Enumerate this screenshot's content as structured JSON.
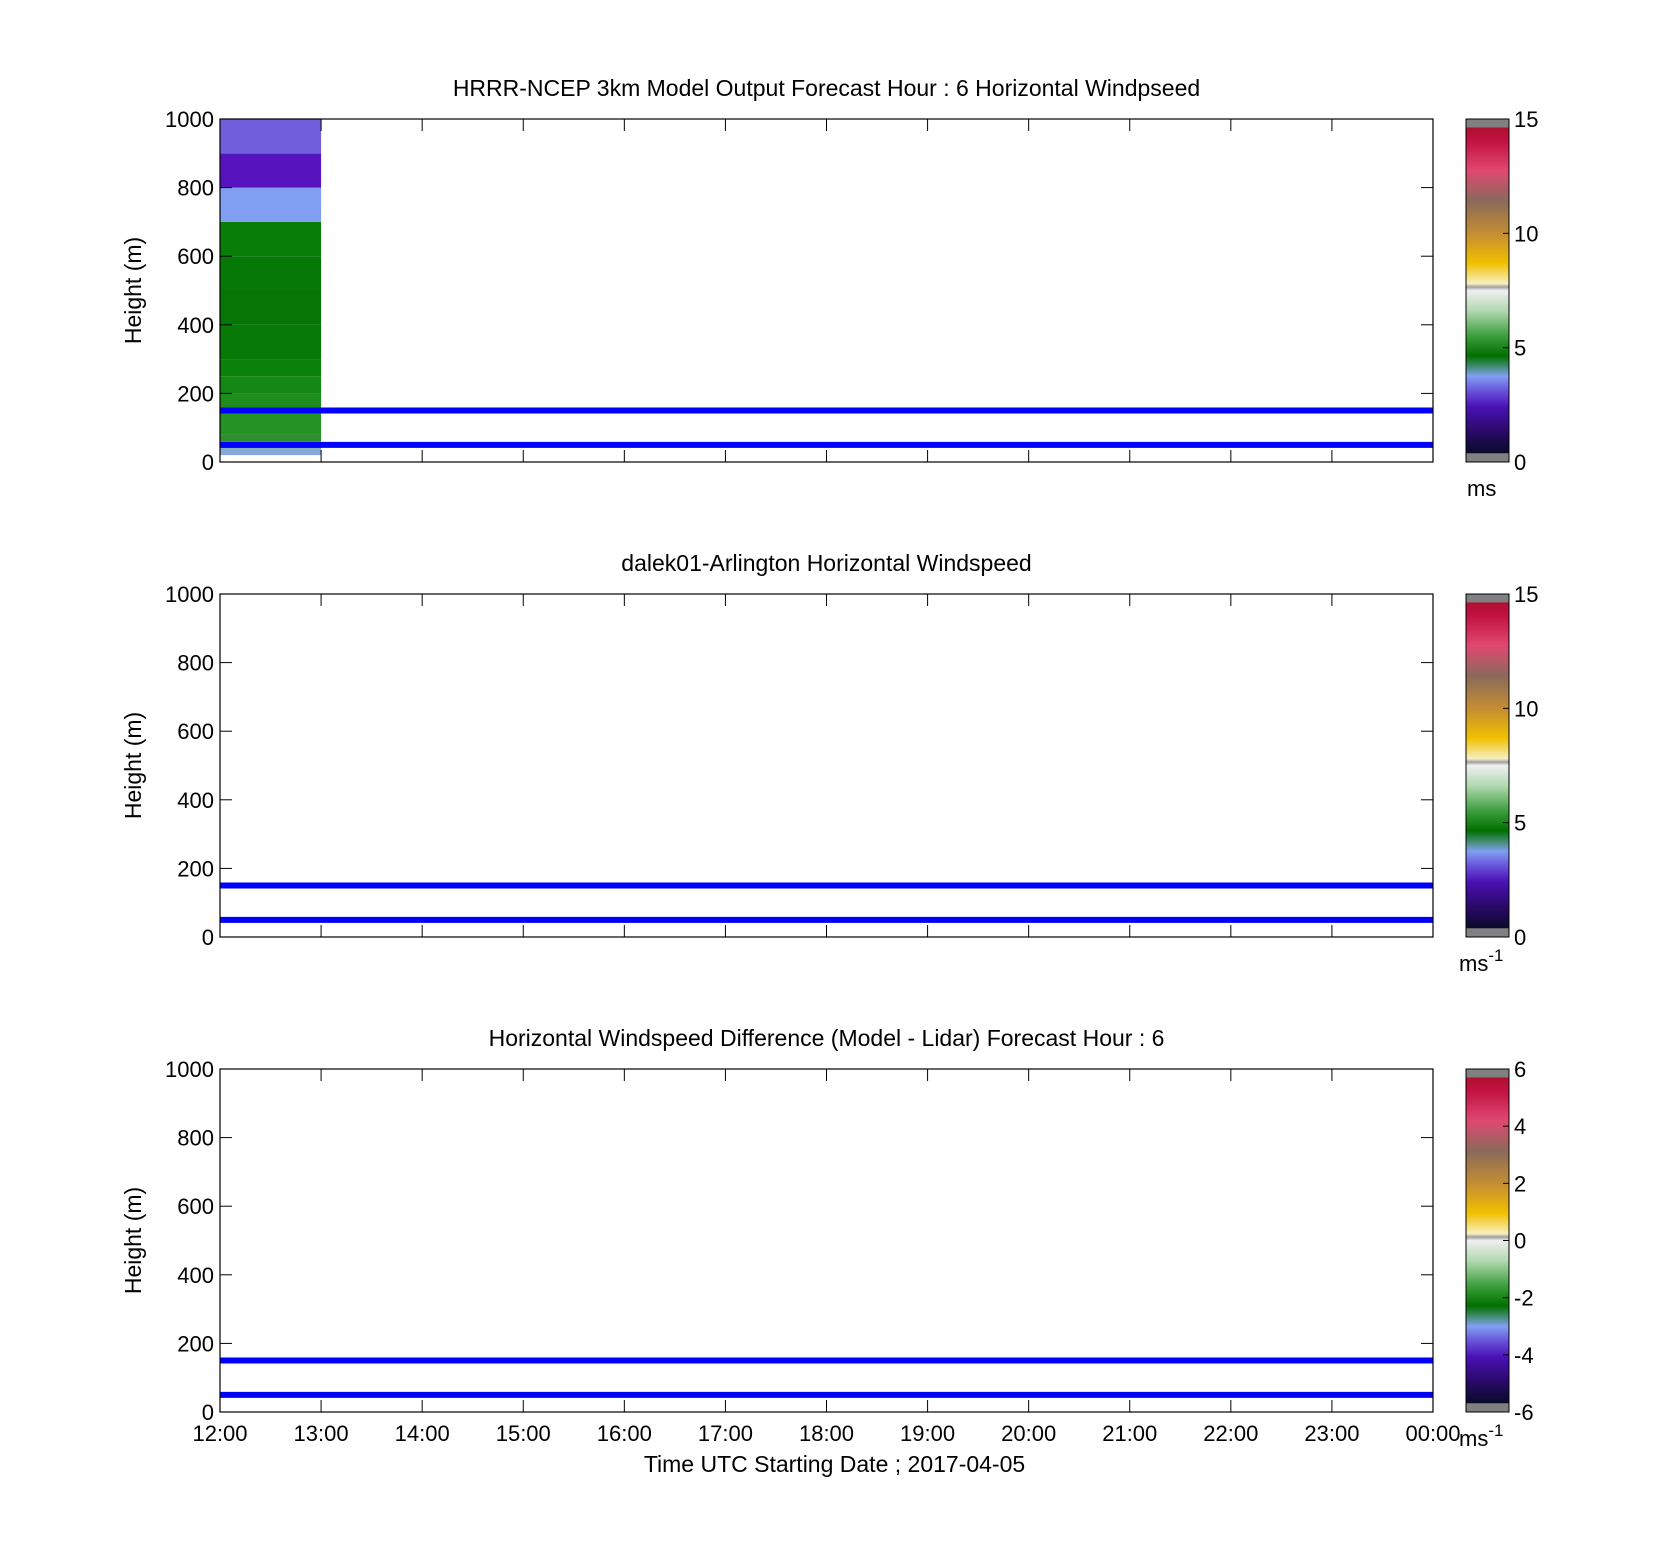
{
  "figure": {
    "xlabel": "Time UTC  Starting Date ; 2017-04-05"
  },
  "chart_data": [
    {
      "type": "heatmap",
      "title": "HRRR-NCEP 3km Model Output   Forecast Hour : 6 Horizontal Windpseed",
      "ylabel": "Height (m)",
      "ylim": [
        0,
        1000
      ],
      "yticks": [
        "0",
        "200",
        "400",
        "600",
        "800",
        "1000"
      ],
      "xticks": [
        "12:00",
        "13:00",
        "14:00",
        "15:00",
        "16:00",
        "17:00",
        "18:00",
        "19:00",
        "20:00",
        "21:00",
        "22:00",
        "23:00",
        "00:00"
      ],
      "show_xtick_labels": false,
      "colorbar": {
        "min": 0,
        "max": 15,
        "ticks": [
          "0",
          "5",
          "10",
          "15"
        ],
        "unit": "ms",
        "unit_sup": ""
      },
      "cells": [
        {
          "t0": "12:00",
          "t1": "13:00",
          "z0": 20,
          "z1": 40,
          "color": "#87a8d8"
        },
        {
          "t0": "12:00",
          "t1": "13:00",
          "z0": 40,
          "z1": 60,
          "color": "#3f9a6a"
        },
        {
          "t0": "12:00",
          "t1": "13:00",
          "z0": 60,
          "z1": 80,
          "color": "#2e8f2e"
        },
        {
          "t0": "12:00",
          "t1": "13:00",
          "z0": 80,
          "z1": 150,
          "color": "#259225"
        },
        {
          "t0": "12:00",
          "t1": "13:00",
          "z0": 150,
          "z1": 200,
          "color": "#1e8d1e"
        },
        {
          "t0": "12:00",
          "t1": "13:00",
          "z0": 200,
          "z1": 250,
          "color": "#148814"
        },
        {
          "t0": "12:00",
          "t1": "13:00",
          "z0": 250,
          "z1": 300,
          "color": "#0a820a"
        },
        {
          "t0": "12:00",
          "t1": "13:00",
          "z0": 300,
          "z1": 400,
          "color": "#067906"
        },
        {
          "t0": "12:00",
          "t1": "13:00",
          "z0": 400,
          "z1": 500,
          "color": "#057605"
        },
        {
          "t0": "12:00",
          "t1": "13:00",
          "z0": 500,
          "z1": 600,
          "color": "#067806"
        },
        {
          "t0": "12:00",
          "t1": "13:00",
          "z0": 600,
          "z1": 700,
          "color": "#087d08"
        },
        {
          "t0": "12:00",
          "t1": "13:00",
          "z0": 700,
          "z1": 800,
          "color": "#809ff2"
        },
        {
          "t0": "12:00",
          "t1": "13:00",
          "z0": 800,
          "z1": 900,
          "color": "#5713bd"
        },
        {
          "t0": "12:00",
          "t1": "13:00",
          "z0": 900,
          "z1": 1000,
          "color": "#705fdc"
        }
      ],
      "lines": [
        {
          "height": 50,
          "color": "#0000ff"
        },
        {
          "height": 150,
          "color": "#0000ff"
        }
      ]
    },
    {
      "type": "heatmap",
      "title": "dalek01-Arlington  Horizontal Windspeed",
      "ylabel": "Height (m)",
      "ylim": [
        0,
        1000
      ],
      "yticks": [
        "0",
        "200",
        "400",
        "600",
        "800",
        "1000"
      ],
      "xticks": [
        "12:00",
        "13:00",
        "14:00",
        "15:00",
        "16:00",
        "17:00",
        "18:00",
        "19:00",
        "20:00",
        "21:00",
        "22:00",
        "23:00",
        "00:00"
      ],
      "show_xtick_labels": false,
      "colorbar": {
        "min": 0,
        "max": 15,
        "ticks": [
          "0",
          "5",
          "10",
          "15"
        ],
        "unit": "ms",
        "unit_sup": "-1"
      },
      "cells": [],
      "lines": [
        {
          "height": 50,
          "color": "#0000ff"
        },
        {
          "height": 150,
          "color": "#0000ff"
        }
      ]
    },
    {
      "type": "heatmap",
      "title": "Horizontal Windspeed Difference (Model - Lidar) Forecast Hour : 6",
      "ylabel": "Height (m)",
      "ylim": [
        0,
        1000
      ],
      "yticks": [
        "0",
        "200",
        "400",
        "600",
        "800",
        "1000"
      ],
      "xticks": [
        "12:00",
        "13:00",
        "14:00",
        "15:00",
        "16:00",
        "17:00",
        "18:00",
        "19:00",
        "20:00",
        "21:00",
        "22:00",
        "23:00",
        "00:00"
      ],
      "show_xtick_labels": true,
      "colorbar": {
        "min": -6,
        "max": 6,
        "ticks": [
          "-6",
          "-4",
          "-2",
          "0",
          "2",
          "4",
          "6"
        ],
        "unit": "ms",
        "unit_sup": "-1"
      },
      "cells": [],
      "lines": [
        {
          "height": 50,
          "color": "#0000ff"
        },
        {
          "height": 150,
          "color": "#0000ff"
        }
      ]
    }
  ],
  "colormap": [
    {
      "pos": 0.0,
      "color": "#808080"
    },
    {
      "pos": 0.025,
      "color": "#808080"
    },
    {
      "pos": 0.026,
      "color": "#0a0a2a"
    },
    {
      "pos": 0.09,
      "color": "#2a0a6a"
    },
    {
      "pos": 0.16,
      "color": "#4a10b4"
    },
    {
      "pos": 0.21,
      "color": "#6a58dc"
    },
    {
      "pos": 0.25,
      "color": "#80a0f2"
    },
    {
      "pos": 0.28,
      "color": "#3f8a6a"
    },
    {
      "pos": 0.31,
      "color": "#007000"
    },
    {
      "pos": 0.37,
      "color": "#40a040"
    },
    {
      "pos": 0.44,
      "color": "#b0d8b0"
    },
    {
      "pos": 0.5,
      "color": "#f0f0f0"
    },
    {
      "pos": 0.51,
      "color": "#a0a0a0"
    },
    {
      "pos": 0.52,
      "color": "#f8f0c0"
    },
    {
      "pos": 0.58,
      "color": "#f0c000"
    },
    {
      "pos": 0.66,
      "color": "#c89030"
    },
    {
      "pos": 0.76,
      "color": "#8a6a5a"
    },
    {
      "pos": 0.85,
      "color": "#e04870"
    },
    {
      "pos": 0.94,
      "color": "#c01040"
    },
    {
      "pos": 0.975,
      "color": "#b01030"
    },
    {
      "pos": 0.976,
      "color": "#808080"
    },
    {
      "pos": 1.0,
      "color": "#808080"
    }
  ]
}
